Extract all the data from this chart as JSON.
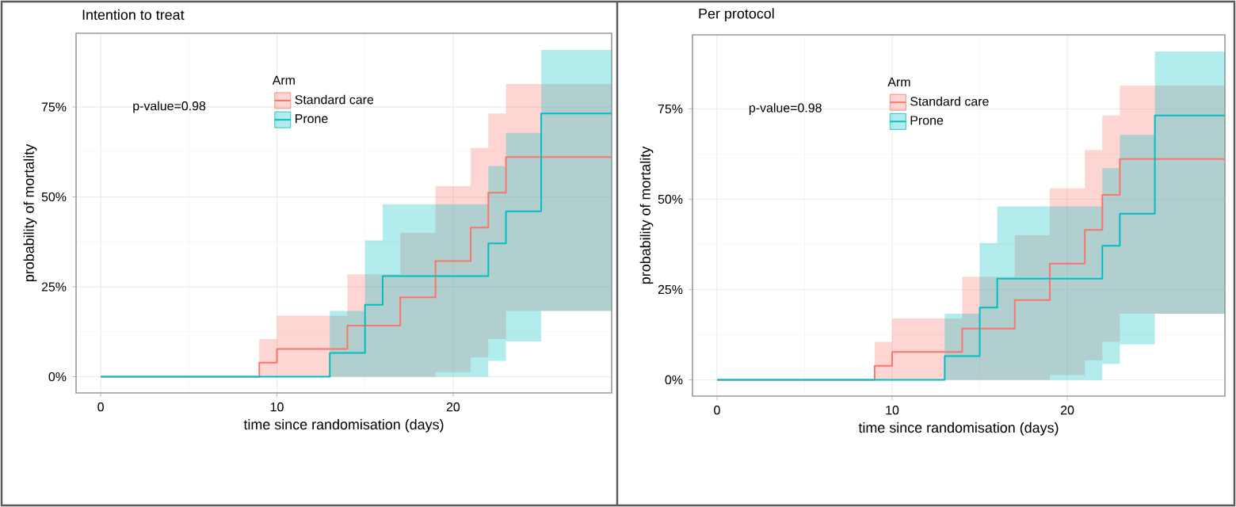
{
  "chart_data": [
    {
      "type": "step",
      "title": "Intention to treat",
      "xlabel": "time since randomisation (days)",
      "ylabel": "probability of mortality",
      "legend_title": "Arm",
      "annotations": [
        "p-value=0.98"
      ],
      "xlim": [
        -1.4,
        29
      ],
      "ylim": [
        -4.5,
        95.5
      ],
      "xticks": [
        0,
        10,
        20
      ],
      "yticks": [
        {
          "value": 0,
          "label": "0%"
        },
        {
          "value": 25,
          "label": "25%"
        },
        {
          "value": 50,
          "label": "50%"
        },
        {
          "value": 75,
          "label": "75%"
        }
      ],
      "grid": true,
      "legend": "top",
      "series": [
        {
          "name": "Standard care",
          "color": "#f8766d",
          "x": [
            0,
            9,
            10,
            14,
            17,
            19,
            21,
            22,
            23,
            29
          ],
          "values": [
            0,
            3.9,
            7.7,
            14.2,
            22.1,
            32.2,
            41.5,
            51.2,
            61.1,
            61.1
          ],
          "lower": [
            0,
            0,
            0,
            0,
            0,
            1.3,
            5.4,
            10.5,
            18.3,
            18.3
          ],
          "upper": [
            0,
            10.5,
            17,
            28.5,
            40,
            53,
            63.6,
            73.2,
            81.4,
            81.4
          ]
        },
        {
          "name": "Prone",
          "color": "#00bfc4",
          "x": [
            0,
            13,
            15,
            16,
            22,
            23,
            25,
            29
          ],
          "values": [
            0,
            6.6,
            20,
            28,
            37.1,
            46,
            73.2,
            73.2
          ],
          "lower": [
            0,
            0,
            0,
            0,
            4.4,
            9.8,
            18.3,
            18.3
          ],
          "upper": [
            0,
            18.3,
            37.9,
            48,
            58.6,
            67.8,
            90.9,
            90.9
          ]
        }
      ]
    },
    {
      "type": "step",
      "title": "Per protocol",
      "xlabel": "time since randomisation (days)",
      "ylabel": "probability of mortality",
      "legend_title": "Arm",
      "annotations": [
        "p-value=0.98"
      ],
      "xlim": [
        -1.4,
        29
      ],
      "ylim": [
        -4.5,
        95.5
      ],
      "xticks": [
        0,
        10,
        20
      ],
      "yticks": [
        {
          "value": 0,
          "label": "0%"
        },
        {
          "value": 25,
          "label": "25%"
        },
        {
          "value": 50,
          "label": "50%"
        },
        {
          "value": 75,
          "label": "75%"
        }
      ],
      "grid": true,
      "legend": "top",
      "series": [
        {
          "name": "Standard care",
          "color": "#f8766d",
          "x": [
            0,
            9,
            10,
            14,
            17,
            19,
            21,
            22,
            23,
            29
          ],
          "values": [
            0,
            3.9,
            7.7,
            14.2,
            22.1,
            32.2,
            41.5,
            51.2,
            61.1,
            61.1
          ],
          "lower": [
            0,
            0,
            0,
            0,
            0,
            1.3,
            5.4,
            10.5,
            18.3,
            18.3
          ],
          "upper": [
            0,
            10.5,
            17,
            28.5,
            40,
            53,
            63.6,
            73.2,
            81.4,
            81.4
          ]
        },
        {
          "name": "Prone",
          "color": "#00bfc4",
          "x": [
            0,
            13,
            15,
            16,
            22,
            23,
            25,
            29
          ],
          "values": [
            0,
            6.6,
            20,
            28,
            37.1,
            46,
            73.2,
            73.2
          ],
          "lower": [
            0,
            0,
            0,
            0,
            4.4,
            9.8,
            18.3,
            18.3
          ],
          "upper": [
            0,
            18.3,
            37.9,
            48,
            58.6,
            67.8,
            90.9,
            90.9
          ]
        }
      ]
    }
  ]
}
